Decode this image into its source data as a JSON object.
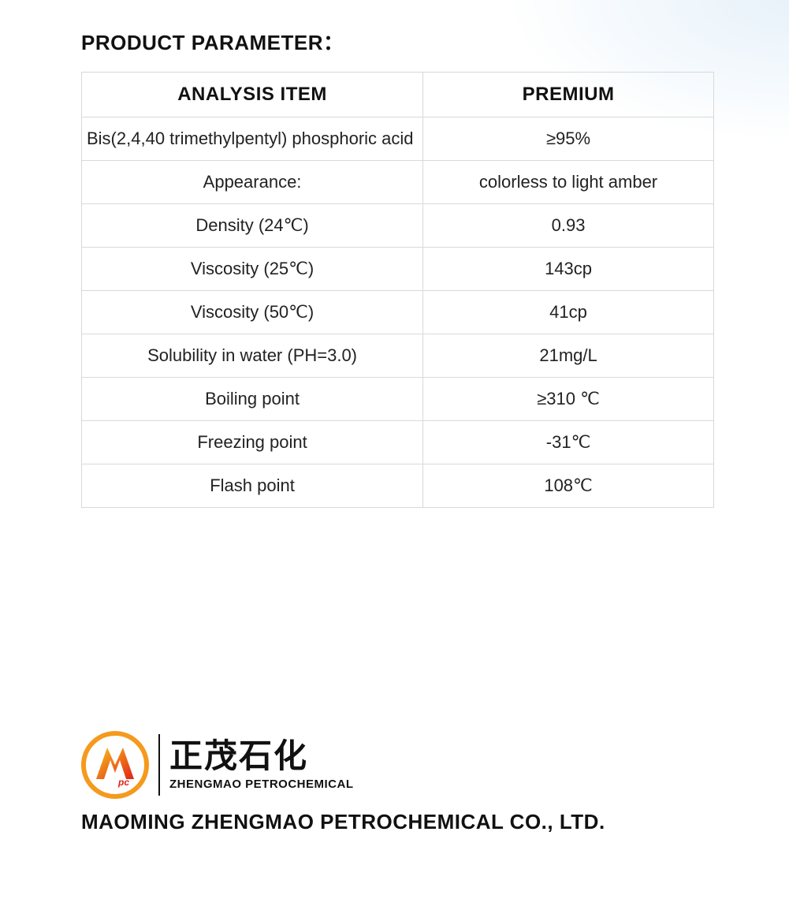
{
  "section_title": "PRODUCT PARAMETER：",
  "table": {
    "type": "table",
    "border_color": "#d9d9d9",
    "header_fontsize": 24,
    "cell_fontsize": 22,
    "text_color": "#1a1a1a",
    "background_color": "#ffffff",
    "column_widths_pct": [
      54,
      46
    ],
    "columns": [
      "ANALYSIS ITEM",
      "PREMIUM"
    ],
    "rows": [
      {
        "item": "Bis(2,4,40 trimethylpentyl) phosphoric acid",
        "value": "≥95%",
        "left_align": true
      },
      {
        "item": "Appearance:",
        "value": "colorless to light amber"
      },
      {
        "item": "Density (24℃)",
        "value": "0.93"
      },
      {
        "item": "Viscosity (25℃)",
        "value": "143cp"
      },
      {
        "item": "Viscosity (50℃)",
        "value": "41cp"
      },
      {
        "item": "Solubility in water (PH=3.0)",
        "value": "21mg/L"
      },
      {
        "item": "Boiling point",
        "value": "≥310 ℃"
      },
      {
        "item": "Freezing point",
        "value": "-31℃"
      },
      {
        "item": "Flash point",
        "value": "108℃"
      }
    ]
  },
  "logo": {
    "ring_color": "#f59a1d",
    "gradient_start": "#f7c21b",
    "gradient_end": "#e2231a",
    "letters": "ZM",
    "sub": "pc"
  },
  "brand": {
    "cn": "正茂石化",
    "en": "ZHENGMAO PETROCHEMICAL"
  },
  "company": "MAOMING ZHENGMAO PETROCHEMICAL CO., LTD.",
  "accent": {
    "color_inner": "#e8f2fa",
    "color_outer": "#ffffff"
  }
}
